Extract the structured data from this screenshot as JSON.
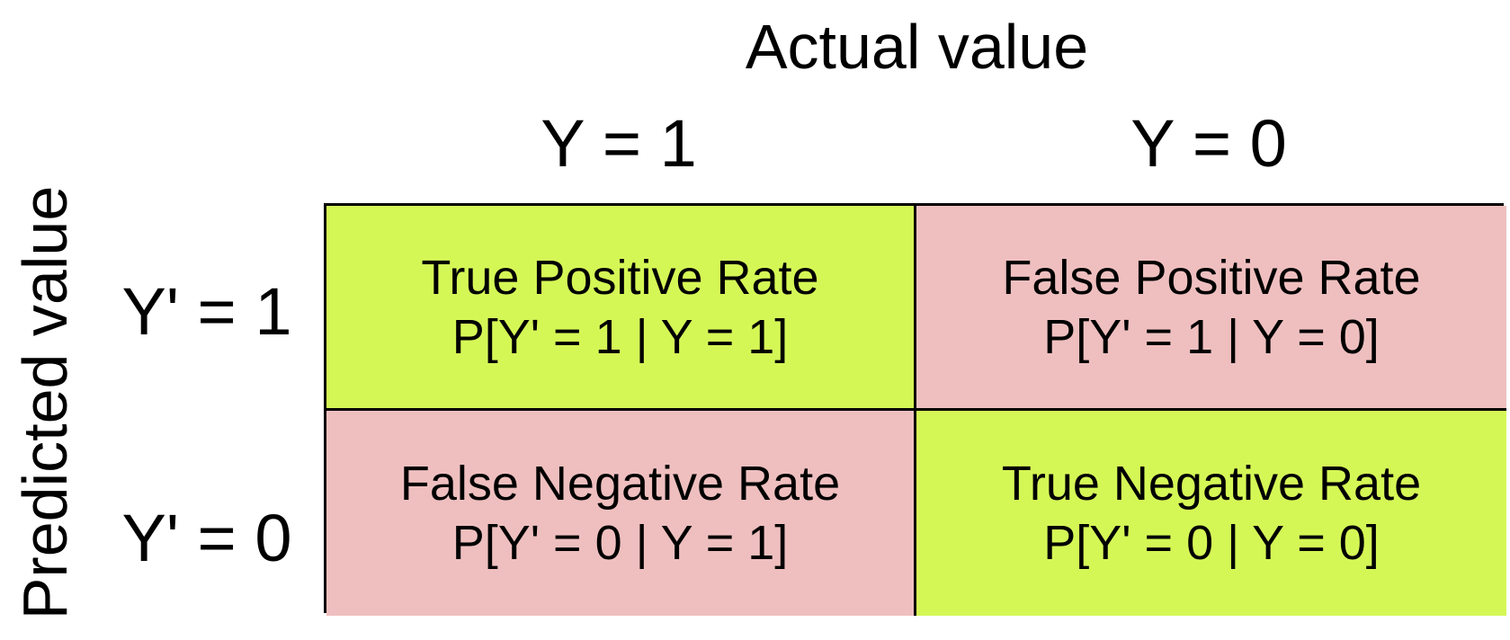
{
  "axes": {
    "actual_title": "Actual value",
    "predicted_title": "Predicted value"
  },
  "columns": [
    {
      "label": "Y = 1"
    },
    {
      "label": "Y = 0"
    }
  ],
  "rows": [
    {
      "label": "Y' = 1"
    },
    {
      "label": "Y' = 0"
    }
  ],
  "cells": [
    {
      "name": "True Positive Rate",
      "formula": "P[Y' = 1 | Y = 1]",
      "color": "#d5f756"
    },
    {
      "name": "False Positive Rate",
      "formula": "P[Y' = 1 | Y = 0]",
      "color": "#efbfbf"
    },
    {
      "name": "False Negative Rate",
      "formula": "P[Y' = 0 | Y = 1]",
      "color": "#efbfbf"
    },
    {
      "name": "True Negative Rate",
      "formula": "P[Y' = 0 | Y = 0]",
      "color": "#d5f756"
    }
  ]
}
